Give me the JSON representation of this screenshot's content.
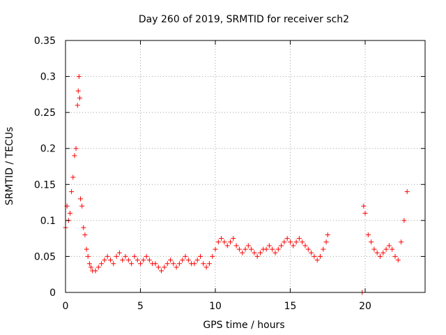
{
  "chart_data": {
    "type": "scatter",
    "title": "Day 260 of 2019, SRMTID for receiver sch2",
    "xlabel": "GPS time / hours",
    "ylabel": "SRMTID / TECUs",
    "xlim": [
      0,
      24
    ],
    "ylim": [
      0,
      0.35
    ],
    "xticks": [
      0,
      5,
      10,
      15,
      20
    ],
    "xtick_labels": [
      "0",
      "5",
      "10",
      "15",
      "20"
    ],
    "yticks": [
      0,
      0.05,
      0.1,
      0.15,
      0.2,
      0.25,
      0.3,
      0.35
    ],
    "ytick_labels": [
      "0",
      "0.05",
      "0.1",
      "0.15",
      "0.2",
      "0.25",
      "0.3",
      "0.35"
    ],
    "grid": true,
    "marker": "+",
    "color": "#ff0000",
    "series": [
      {
        "name": "SRMTID",
        "x": [
          0.0,
          0.1,
          0.2,
          0.3,
          0.4,
          0.5,
          0.6,
          0.7,
          0.8,
          0.85,
          0.9,
          0.95,
          1.0,
          1.1,
          1.2,
          1.3,
          1.4,
          1.5,
          1.6,
          1.7,
          1.8,
          2.0,
          2.2,
          2.4,
          2.6,
          2.8,
          3.0,
          3.2,
          3.4,
          3.6,
          3.8,
          4.0,
          4.2,
          4.4,
          4.6,
          4.8,
          5.0,
          5.2,
          5.4,
          5.6,
          5.8,
          6.0,
          6.2,
          6.4,
          6.6,
          6.8,
          7.0,
          7.2,
          7.4,
          7.6,
          7.8,
          8.0,
          8.2,
          8.4,
          8.6,
          8.8,
          9.0,
          9.2,
          9.4,
          9.6,
          9.8,
          10.0,
          10.2,
          10.4,
          10.6,
          10.8,
          11.0,
          11.2,
          11.4,
          11.6,
          11.8,
          12.0,
          12.2,
          12.4,
          12.6,
          12.8,
          13.0,
          13.2,
          13.4,
          13.6,
          13.8,
          14.0,
          14.2,
          14.4,
          14.6,
          14.8,
          15.0,
          15.2,
          15.4,
          15.6,
          15.8,
          16.0,
          16.2,
          16.4,
          16.6,
          16.8,
          17.0,
          17.2,
          17.4,
          17.5,
          19.8,
          19.9,
          20.0,
          20.2,
          20.4,
          20.6,
          20.8,
          21.0,
          21.2,
          21.4,
          21.6,
          21.8,
          22.0,
          22.2,
          22.4,
          22.6,
          22.8
        ],
        "y": [
          0.09,
          0.12,
          0.1,
          0.11,
          0.14,
          0.16,
          0.19,
          0.2,
          0.26,
          0.28,
          0.3,
          0.27,
          0.13,
          0.12,
          0.09,
          0.08,
          0.06,
          0.05,
          0.04,
          0.035,
          0.03,
          0.03,
          0.035,
          0.04,
          0.045,
          0.05,
          0.045,
          0.04,
          0.05,
          0.055,
          0.045,
          0.05,
          0.045,
          0.04,
          0.05,
          0.045,
          0.04,
          0.045,
          0.05,
          0.045,
          0.04,
          0.04,
          0.035,
          0.03,
          0.035,
          0.04,
          0.045,
          0.04,
          0.035,
          0.04,
          0.045,
          0.05,
          0.045,
          0.04,
          0.04,
          0.045,
          0.05,
          0.04,
          0.035,
          0.04,
          0.05,
          0.06,
          0.07,
          0.075,
          0.07,
          0.065,
          0.07,
          0.075,
          0.065,
          0.06,
          0.055,
          0.06,
          0.065,
          0.06,
          0.055,
          0.05,
          0.055,
          0.06,
          0.06,
          0.065,
          0.06,
          0.055,
          0.06,
          0.065,
          0.07,
          0.075,
          0.07,
          0.065,
          0.07,
          0.075,
          0.07,
          0.065,
          0.06,
          0.055,
          0.05,
          0.045,
          0.05,
          0.06,
          0.07,
          0.08,
          0.0,
          0.12,
          0.11,
          0.08,
          0.07,
          0.06,
          0.055,
          0.05,
          0.055,
          0.06,
          0.065,
          0.06,
          0.05,
          0.045,
          0.07,
          0.1,
          0.14
        ]
      }
    ]
  }
}
